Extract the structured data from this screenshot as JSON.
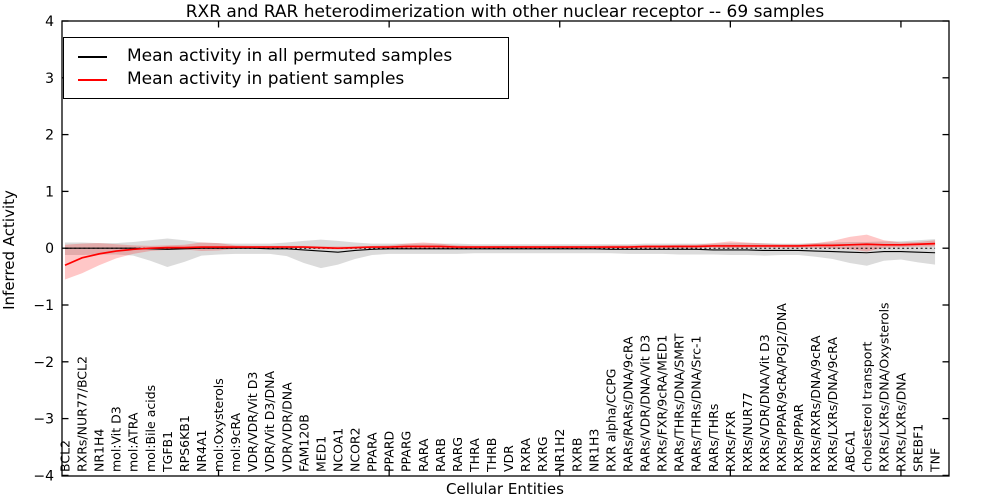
{
  "chart_data": {
    "type": "line",
    "title": "RXR and RAR heterodimerization with other nuclear receptor -- 69 samples",
    "xlabel": "Cellular Entities",
    "ylabel": "Inferred Activity",
    "ylim": [
      -4,
      4
    ],
    "yticks": [
      -4,
      -3,
      -2,
      -1,
      0,
      1,
      2,
      3,
      4
    ],
    "xtick_indices": [
      9,
      19,
      29,
      39,
      49
    ],
    "grid": false,
    "legend_position": "upper-left",
    "categories": [
      "BCL2",
      "RXRs/NUR77/BCL2",
      "NR1H4",
      "mol:Vit D3",
      "mol:ATRA",
      "mol:Bile acids",
      "TGFB1",
      "RPS6KB1",
      "NR4A1",
      "mol:Oxysterols",
      "mol:9cRA",
      "VDR/VDR/Vit D3",
      "VDR/Vit D3/DNA",
      "VDR/VDR/DNA",
      "FAM120B",
      "MED1",
      "NCOA1",
      "NCOR2",
      "PPARA",
      "PPARD",
      "PPARG",
      "RARA",
      "RARB",
      "RARG",
      "THRA",
      "THRB",
      "VDR",
      "RXRA",
      "RXRG",
      "NR1H2",
      "RXRB",
      "NR1H3",
      "RXR alpha/CCPG",
      "RARs/RARs/DNA/9cRA",
      "RARs/VDR/DNA/Vit D3",
      "RXRs/FXR/9cRA/MED1",
      "RARs/THRs/DNA/SMRT",
      "RARs/THRs/DNA/Src-1",
      "RARs/THRs",
      "RXRs/FXR",
      "RXRs/NUR77",
      "RXRs/VDR/DNA/Vit D3",
      "RXRs/PPAR/9cRA/PGJ2/DNA",
      "RXRs/PPAR",
      "RXRs/RXRs/DNA/9cRA",
      "RXRs/LXRs/DNA/9cRA",
      "ABCA1",
      "cholesterol transport",
      "RXRs/LXRs/DNA/Oxysterols",
      "RXRs/LXRs/DNA",
      "SREBF1",
      "TNF"
    ],
    "series": [
      {
        "name": "Mean activity in all permuted samples",
        "color": "#000000",
        "band_color": "#999999",
        "band_opacity": 0.35,
        "values": [
          0.0,
          0.0,
          0.0,
          0.0,
          0.0,
          -0.01,
          -0.02,
          -0.01,
          0.0,
          0.0,
          0.0,
          0.0,
          -0.01,
          -0.01,
          -0.03,
          -0.05,
          -0.07,
          -0.04,
          -0.02,
          -0.01,
          -0.01,
          -0.01,
          -0.01,
          -0.01,
          -0.01,
          -0.01,
          -0.01,
          -0.01,
          -0.01,
          -0.01,
          -0.01,
          -0.01,
          -0.02,
          -0.02,
          -0.02,
          -0.02,
          -0.02,
          -0.02,
          -0.03,
          -0.03,
          -0.03,
          -0.04,
          -0.04,
          -0.04,
          -0.05,
          -0.06,
          -0.07,
          -0.08,
          -0.06,
          -0.06,
          -0.07,
          -0.08
        ],
        "band_high": [
          0.1,
          0.1,
          0.09,
          0.09,
          0.11,
          0.14,
          0.17,
          0.14,
          0.1,
          0.09,
          0.08,
          0.08,
          0.08,
          0.1,
          0.13,
          0.15,
          0.13,
          0.1,
          0.08,
          0.08,
          0.08,
          0.08,
          0.08,
          0.08,
          0.07,
          0.07,
          0.07,
          0.07,
          0.07,
          0.07,
          0.07,
          0.07,
          0.07,
          0.07,
          0.08,
          0.08,
          0.08,
          0.08,
          0.08,
          0.09,
          0.09,
          0.09,
          0.08,
          0.08,
          0.09,
          0.1,
          0.11,
          0.11,
          0.12,
          0.12,
          0.14,
          0.16
        ],
        "band_low": [
          -0.12,
          -0.12,
          -0.11,
          -0.11,
          -0.13,
          -0.22,
          -0.33,
          -0.24,
          -0.13,
          -0.11,
          -0.1,
          -0.1,
          -0.1,
          -0.14,
          -0.26,
          -0.35,
          -0.29,
          -0.19,
          -0.12,
          -0.1,
          -0.1,
          -0.1,
          -0.1,
          -0.1,
          -0.09,
          -0.09,
          -0.09,
          -0.09,
          -0.09,
          -0.09,
          -0.09,
          -0.09,
          -0.09,
          -0.1,
          -0.1,
          -0.1,
          -0.11,
          -0.11,
          -0.11,
          -0.12,
          -0.12,
          -0.13,
          -0.12,
          -0.12,
          -0.15,
          -0.19,
          -0.26,
          -0.31,
          -0.22,
          -0.2,
          -0.25,
          -0.29
        ]
      },
      {
        "name": "Mean activity in patient samples",
        "color": "#ff0000",
        "band_color": "#ff0000",
        "band_opacity": 0.22,
        "values": [
          -0.3,
          -0.17,
          -0.1,
          -0.05,
          -0.02,
          0.0,
          0.01,
          0.01,
          0.02,
          0.02,
          0.02,
          0.02,
          0.02,
          0.02,
          0.02,
          0.01,
          0.0,
          0.01,
          0.02,
          0.02,
          0.03,
          0.03,
          0.03,
          0.02,
          0.02,
          0.02,
          0.02,
          0.02,
          0.02,
          0.02,
          0.02,
          0.02,
          0.02,
          0.02,
          0.03,
          0.03,
          0.03,
          0.03,
          0.04,
          0.04,
          0.04,
          0.04,
          0.04,
          0.04,
          0.05,
          0.05,
          0.06,
          0.07,
          0.06,
          0.06,
          0.07,
          0.08
        ],
        "band_high": [
          0.06,
          0.08,
          0.09,
          0.07,
          0.05,
          0.04,
          0.05,
          0.06,
          0.1,
          0.09,
          0.05,
          0.04,
          0.04,
          0.04,
          0.04,
          0.03,
          0.03,
          0.03,
          0.04,
          0.05,
          0.08,
          0.1,
          0.08,
          0.05,
          0.04,
          0.04,
          0.04,
          0.04,
          0.04,
          0.04,
          0.04,
          0.04,
          0.05,
          0.05,
          0.05,
          0.05,
          0.06,
          0.06,
          0.09,
          0.12,
          0.1,
          0.08,
          0.07,
          0.07,
          0.09,
          0.13,
          0.2,
          0.24,
          0.14,
          0.1,
          0.11,
          0.14
        ],
        "band_low": [
          -0.55,
          -0.44,
          -0.3,
          -0.18,
          -0.1,
          -0.05,
          -0.03,
          -0.02,
          -0.05,
          -0.04,
          -0.01,
          0.0,
          0.0,
          0.0,
          0.0,
          -0.01,
          -0.02,
          -0.01,
          0.0,
          0.0,
          -0.01,
          -0.01,
          0.0,
          0.0,
          0.0,
          0.0,
          0.0,
          0.0,
          0.0,
          0.0,
          0.0,
          0.0,
          0.0,
          0.0,
          0.0,
          0.0,
          0.01,
          0.01,
          0.01,
          0.0,
          0.01,
          0.01,
          0.01,
          0.01,
          0.01,
          0.0,
          -0.02,
          -0.06,
          0.01,
          0.02,
          0.03,
          0.03
        ]
      }
    ],
    "zero_reference": {
      "value": 0,
      "style": "dashed",
      "color": "#000000"
    }
  }
}
